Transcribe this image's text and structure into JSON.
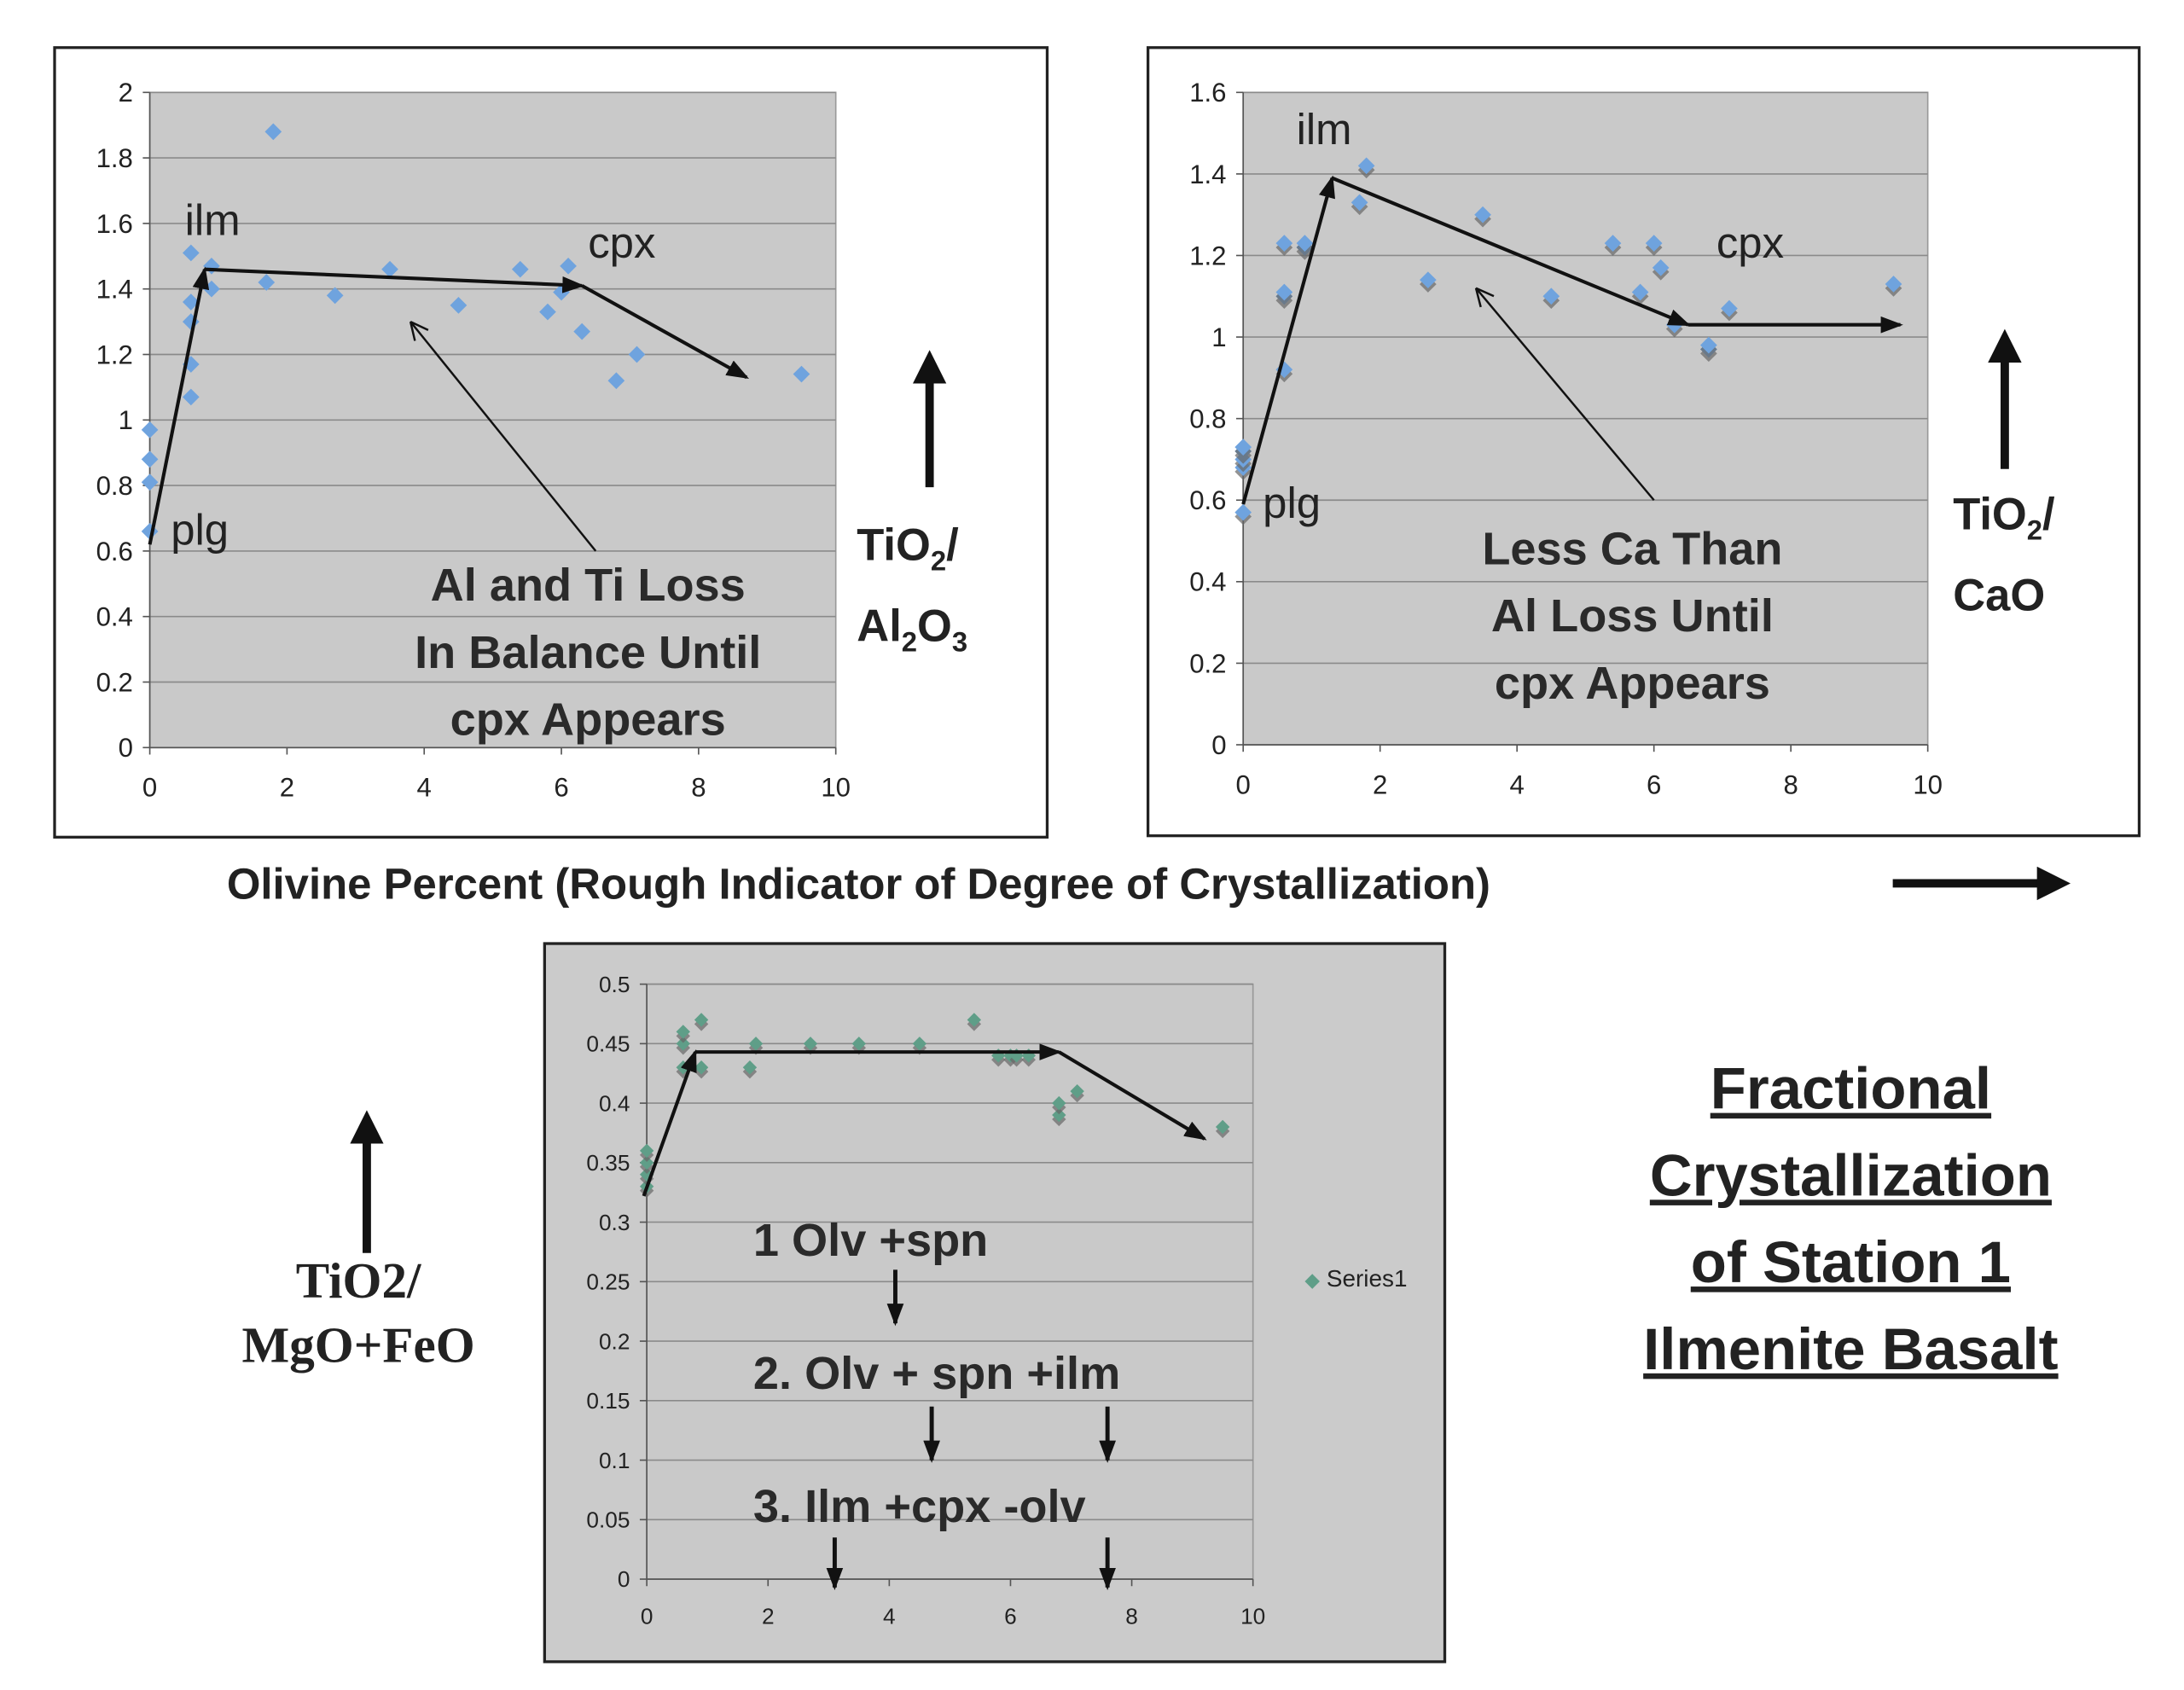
{
  "colors": {
    "point_blue": "#6fa3de",
    "point_green": "#5f9e88",
    "plot_bg": "#c9c9c9",
    "grid": "#8a8a8a"
  },
  "shared_xlabel": "Olivine Percent (Rough Indicator of Degree of Crystallization)",
  "title_lines": [
    "Fractional",
    "Crystallization",
    "of Station 1",
    "Ilmenite Basalt"
  ],
  "chart_data": [
    {
      "type": "scatter",
      "ylabel_main": "TiO",
      "ylabel_sub1": "2",
      "ylabel_slash": "/",
      "ylabel2_a": "Al",
      "ylabel2_sub1": "2",
      "ylabel2_b": "O",
      "ylabel2_sub2": "3",
      "xlim": [
        0,
        10
      ],
      "ylim": [
        0,
        2
      ],
      "xticks": [
        "0",
        "2",
        "4",
        "6",
        "8",
        "10"
      ],
      "yticks": [
        "0",
        "0.2",
        "0.4",
        "0.6",
        "0.8",
        "1",
        "1.2",
        "1.4",
        "1.6",
        "1.8",
        "2"
      ],
      "x": [
        0,
        0,
        0,
        0,
        0.6,
        0.6,
        0.6,
        0.6,
        0.6,
        0.9,
        0.9,
        1.7,
        1.8,
        2.7,
        3.5,
        4.5,
        5.4,
        5.8,
        6.0,
        6.1,
        6.3,
        6.8,
        7.1,
        9.5
      ],
      "y": [
        0.66,
        0.81,
        0.88,
        0.97,
        1.07,
        1.17,
        1.3,
        1.36,
        1.51,
        1.4,
        1.47,
        1.42,
        1.88,
        1.38,
        1.46,
        1.35,
        1.46,
        1.33,
        1.39,
        1.47,
        1.27,
        1.12,
        1.2,
        1.14
      ],
      "arrows": [
        [
          0,
          0.62,
          0.8,
          1.46
        ],
        [
          0.8,
          1.46,
          6.3,
          1.41
        ],
        [
          6.3,
          1.41,
          8.7,
          1.13
        ]
      ],
      "pointer": [
        6.5,
        0.6,
        3.8,
        1.3
      ],
      "labels": {
        "ilm": "ilm",
        "cpx": "cpx",
        "plg": "plg"
      },
      "annotation": [
        "Al and Ti Loss",
        "In Balance Until",
        "cpx Appears"
      ]
    },
    {
      "type": "scatter",
      "ylabel_main": "TiO",
      "ylabel_sub1": "2",
      "ylabel_slash": "/",
      "ylabel2": "CaO",
      "xlim": [
        0,
        10
      ],
      "ylim": [
        0,
        1.6
      ],
      "xticks": [
        "0",
        "2",
        "4",
        "6",
        "8",
        "10"
      ],
      "yticks": [
        "0",
        "0.2",
        "0.4",
        "0.6",
        "0.8",
        "1",
        "1.2",
        "1.4",
        "1.6"
      ],
      "x": [
        0,
        0,
        0,
        0,
        0,
        0.6,
        0.6,
        0.6,
        0.6,
        0.9,
        0.9,
        1.7,
        1.8,
        2.7,
        3.5,
        4.5,
        5.4,
        5.8,
        6.0,
        6.1,
        6.3,
        6.8,
        6.8,
        7.1,
        9.5
      ],
      "y": [
        0.57,
        0.68,
        0.7,
        0.72,
        0.73,
        0.92,
        1.1,
        1.11,
        1.23,
        1.22,
        1.23,
        1.33,
        1.42,
        1.14,
        1.3,
        1.1,
        1.23,
        1.11,
        1.23,
        1.17,
        1.03,
        0.97,
        0.98,
        1.07,
        1.13
      ],
      "arrows": [
        [
          0,
          0.59,
          1.3,
          1.39
        ],
        [
          1.3,
          1.39,
          6.5,
          1.03
        ],
        [
          6.5,
          1.03,
          9.6,
          1.03
        ]
      ],
      "pointer": [
        6.0,
        0.6,
        3.4,
        1.12
      ],
      "labels": {
        "ilm": "ilm",
        "cpx": "cpx",
        "plg": "plg"
      },
      "annotation": [
        "Less Ca Than",
        "Al Loss Until",
        "cpx Appears"
      ]
    },
    {
      "type": "scatter",
      "ylabel_lines": [
        "TiO2/",
        "MgO+FeO"
      ],
      "legend": "Series1",
      "legend_position": "right",
      "xlim": [
        0,
        10
      ],
      "ylim": [
        0,
        0.5
      ],
      "xticks": [
        "0",
        "2",
        "4",
        "6",
        "8",
        "10"
      ],
      "yticks": [
        "0",
        "0.05",
        "0.1",
        "0.15",
        "0.2",
        "0.25",
        "0.3",
        "0.35",
        "0.4",
        "0.45",
        "0.5"
      ],
      "x": [
        0,
        0,
        0,
        0,
        0.6,
        0.6,
        0.6,
        0.9,
        0.9,
        1.7,
        1.8,
        2.7,
        3.5,
        4.5,
        5.4,
        5.8,
        6.0,
        6.1,
        6.3,
        6.8,
        6.8,
        7.1,
        9.5
      ],
      "y": [
        0.33,
        0.34,
        0.35,
        0.36,
        0.43,
        0.45,
        0.46,
        0.43,
        0.47,
        0.43,
        0.45,
        0.45,
        0.45,
        0.45,
        0.47,
        0.44,
        0.44,
        0.44,
        0.44,
        0.39,
        0.4,
        0.41,
        0.38
      ],
      "arrows": [
        [
          -0.05,
          0.322,
          0.8,
          0.443
        ],
        [
          0.8,
          0.443,
          6.8,
          0.443
        ],
        [
          6.8,
          0.443,
          9.2,
          0.37
        ]
      ],
      "down_arrows": [
        [
          4.1,
          0.26,
          0.215
        ],
        [
          4.7,
          0.145,
          0.1
        ],
        [
          7.6,
          0.145,
          0.1
        ],
        [
          3.1,
          0.035,
          -0.007
        ],
        [
          7.6,
          0.035,
          -0.007
        ]
      ],
      "annotation": [
        "1 Olv +spn",
        "2. Olv + spn +ilm",
        "3. Ilm +cpx -olv"
      ]
    }
  ]
}
